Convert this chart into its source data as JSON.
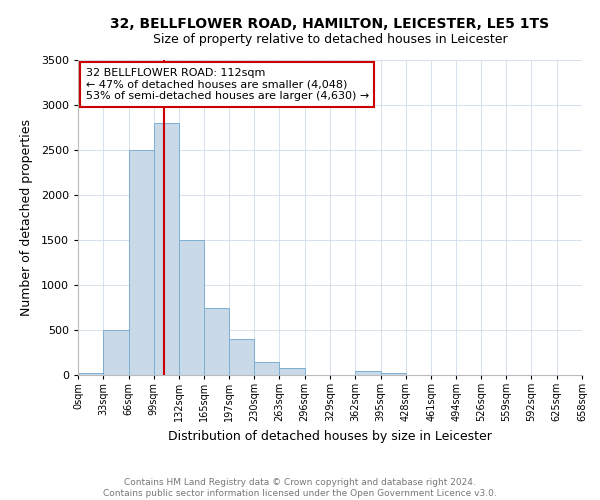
{
  "title_line1": "32, BELLFLOWER ROAD, HAMILTON, LEICESTER, LE5 1TS",
  "title_line2": "Size of property relative to detached houses in Leicester",
  "xlabel": "Distribution of detached houses by size in Leicester",
  "ylabel": "Number of detached properties",
  "bin_edges": [
    0,
    33,
    66,
    99,
    132,
    165,
    197,
    230,
    263,
    296,
    329,
    362,
    395,
    428,
    461,
    494,
    526,
    559,
    592,
    625,
    658
  ],
  "bin_labels": [
    "0sqm",
    "33sqm",
    "66sqm",
    "99sqm",
    "132sqm",
    "165sqm",
    "197sqm",
    "230sqm",
    "263sqm",
    "296sqm",
    "329sqm",
    "362sqm",
    "395sqm",
    "428sqm",
    "461sqm",
    "494sqm",
    "526sqm",
    "559sqm",
    "592sqm",
    "625sqm",
    "658sqm"
  ],
  "bar_heights": [
    25,
    500,
    2500,
    2800,
    1500,
    750,
    400,
    150,
    80,
    0,
    0,
    50,
    20,
    0,
    0,
    0,
    0,
    0,
    0,
    0
  ],
  "bar_color": "#c9d9e8",
  "bar_edge_color": "#7bafd4",
  "property_line_x": 112,
  "property_line_color": "#cc0000",
  "annotation_title": "32 BELLFLOWER ROAD: 112sqm",
  "annotation_line2": "← 47% of detached houses are smaller (4,048)",
  "annotation_line3": "53% of semi-detached houses are larger (4,630) →",
  "annotation_box_color": "#cc0000",
  "ylim": [
    0,
    3500
  ],
  "yticks": [
    0,
    500,
    1000,
    1500,
    2000,
    2500,
    3000,
    3500
  ],
  "footer_line1": "Contains HM Land Registry data © Crown copyright and database right 2024.",
  "footer_line2": "Contains public sector information licensed under the Open Government Licence v3.0.",
  "background_color": "#ffffff",
  "grid_color": "#d0dce8"
}
